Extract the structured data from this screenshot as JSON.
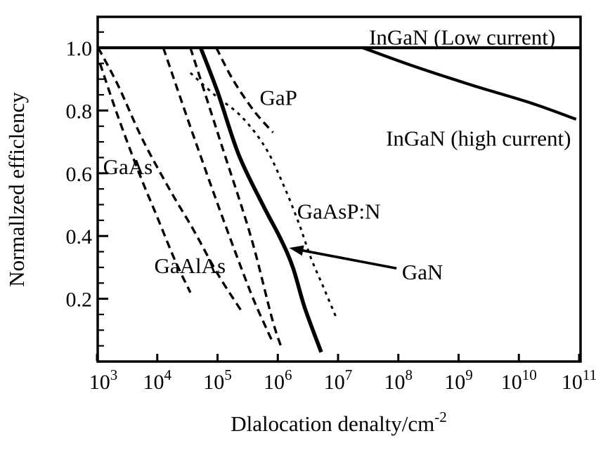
{
  "figure": {
    "background": "#ffffff",
    "ink_color": "#000000"
  },
  "chart_data": {
    "type": "line",
    "title": "",
    "xlabel": {
      "text": "Dlalocation denalty/cm",
      "superscript": "-2"
    },
    "ylabel": "Normallzed efficlency",
    "x_scale": "log",
    "x_tick_base": "10",
    "x_tick_exponents": [
      3,
      4,
      5,
      6,
      7,
      8,
      9,
      10,
      11
    ],
    "xlim_exponents": [
      3,
      11.02
    ],
    "y_ticks": [
      0.2,
      0.4,
      0.6,
      0.8,
      1.0
    ],
    "y_tick_labels": [
      "0.2",
      "0.4",
      "0.6",
      "0.8",
      "1.0"
    ],
    "y_minor_step": 0.05,
    "ylim": [
      0,
      1.1
    ],
    "grid": false,
    "legend_position": "none",
    "series": [
      {
        "name": "GaAs-upper",
        "material": "GaAs",
        "style": "dashed",
        "points": [
          [
            3.02,
            1.0
          ],
          [
            3.35,
            0.88
          ],
          [
            3.75,
            0.71
          ],
          [
            4.2,
            0.55
          ],
          [
            4.6,
            0.42
          ],
          [
            5.0,
            0.28
          ],
          [
            5.4,
            0.16
          ]
        ]
      },
      {
        "name": "GaAs-lower",
        "material": "GaAs",
        "style": "dashed",
        "points": [
          [
            3.05,
            0.95
          ],
          [
            3.35,
            0.78
          ],
          [
            3.7,
            0.6
          ],
          [
            4.0,
            0.46
          ],
          [
            4.3,
            0.32
          ],
          [
            4.55,
            0.22
          ]
        ]
      },
      {
        "name": "GaAlAs-left",
        "material": "GaAlAs",
        "style": "dashed",
        "points": [
          [
            4.1,
            1.0
          ],
          [
            4.6,
            0.72
          ],
          [
            5.1,
            0.45
          ],
          [
            5.55,
            0.22
          ],
          [
            5.8,
            0.11
          ],
          [
            5.92,
            0.06
          ]
        ]
      },
      {
        "name": "GaAlAs-right",
        "material": "GaAlAs",
        "style": "dashed",
        "points": [
          [
            4.55,
            1.0
          ],
          [
            5.05,
            0.7
          ],
          [
            5.55,
            0.4
          ],
          [
            5.9,
            0.14
          ],
          [
            6.05,
            0.05
          ]
        ]
      },
      {
        "name": "GaP",
        "material": "GaP",
        "style": "dashed",
        "points": [
          [
            4.98,
            1.0
          ],
          [
            5.25,
            0.9
          ],
          [
            5.6,
            0.8
          ],
          [
            5.92,
            0.73
          ]
        ]
      },
      {
        "name": "GaAsP-N",
        "material": "GaAsP:N",
        "style": "dotted",
        "points": [
          [
            4.55,
            0.92
          ],
          [
            4.95,
            0.85
          ],
          [
            5.4,
            0.78
          ],
          [
            5.8,
            0.68
          ],
          [
            6.1,
            0.56
          ],
          [
            6.35,
            0.44
          ],
          [
            6.55,
            0.33
          ],
          [
            6.75,
            0.24
          ],
          [
            6.97,
            0.14
          ]
        ]
      },
      {
        "name": "GaN",
        "material": "GaN",
        "style": "solid-thick",
        "points": [
          [
            4.72,
            1.0
          ],
          [
            5.0,
            0.86
          ],
          [
            5.35,
            0.66
          ],
          [
            5.75,
            0.5
          ],
          [
            6.05,
            0.39
          ],
          [
            6.25,
            0.3
          ],
          [
            6.45,
            0.17
          ],
          [
            6.72,
            0.03
          ]
        ]
      },
      {
        "name": "InGaN-low-current",
        "material": "InGaN (Low current)",
        "style": "solid",
        "points": [
          [
            3.0,
            1.0
          ],
          [
            11.02,
            1.0
          ]
        ]
      },
      {
        "name": "InGaN-high-current",
        "material": "InGaN (high current)",
        "style": "solid",
        "points": [
          [
            7.41,
            1.0
          ],
          [
            8.2,
            0.945
          ],
          [
            9.2,
            0.882
          ],
          [
            10.2,
            0.824
          ],
          [
            10.95,
            0.772
          ]
        ]
      }
    ],
    "annotations": [
      {
        "text": "InGaN  (Low current)",
        "x": 9.06,
        "y": 1.035,
        "anchor": "middle"
      },
      {
        "text": "InGaN (high current)",
        "x": 9.33,
        "y": 0.713,
        "anchor": "middle"
      },
      {
        "text": "GaP",
        "x": 5.7,
        "y": 0.842,
        "anchor": "start"
      },
      {
        "text": "GaAs",
        "x": 3.1,
        "y": 0.622,
        "anchor": "start"
      },
      {
        "text": "GaAlAs",
        "x": 3.95,
        "y": 0.306,
        "anchor": "start"
      },
      {
        "text": "GaAsP:N",
        "x": 6.32,
        "y": 0.48,
        "anchor": "start"
      },
      {
        "text": "GaN",
        "x": 8.06,
        "y": 0.286,
        "anchor": "start"
      }
    ],
    "arrow": {
      "from": [
        7.97,
        0.297
      ],
      "to": [
        6.19,
        0.362
      ],
      "points_to": "GaN"
    }
  }
}
